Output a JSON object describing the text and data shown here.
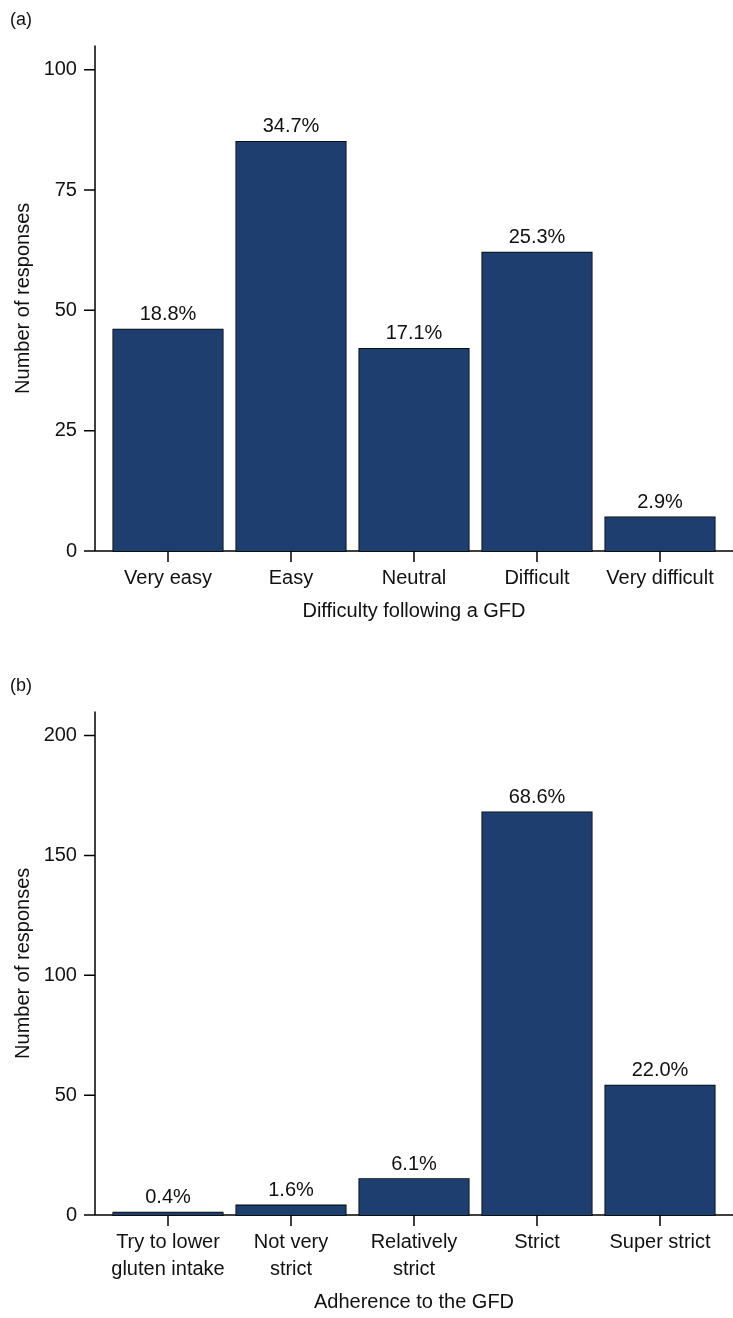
{
  "chart_data": [
    {
      "type": "bar",
      "title": "(a)",
      "xlabel": "Difficulty following a GFD",
      "ylabel": "Number of responses",
      "categories": [
        "Very easy",
        "Easy",
        "Neutral",
        "Difficult",
        "Very difficult"
      ],
      "values": [
        46,
        85,
        42,
        62,
        7
      ],
      "color": "#1d3e6f",
      "ylim": [
        0,
        105
      ],
      "yticks": [
        0,
        25,
        50,
        75,
        100
      ],
      "annotations": [
        {
          "text": "18.8%",
          "x": "Very easy",
          "y": 46
        },
        {
          "text": "34.7%",
          "x": "Easy",
          "y": 85
        },
        {
          "text": "17.1%",
          "x": "Neutral",
          "y": 42
        },
        {
          "text": "25.3%",
          "x": "Difficult",
          "y": 62
        },
        {
          "text": "2.9%",
          "x": "Very difficult",
          "y": 7
        }
      ]
    },
    {
      "type": "bar",
      "title": "(b)",
      "xlabel": "Adherence to the GFD",
      "ylabel": "Number of responses",
      "categories": [
        "Try to lower gluten intake",
        "Not very strict",
        "Relatively strict",
        "Strict",
        "Super strict"
      ],
      "values": [
        1,
        4,
        15,
        168,
        54
      ],
      "color": "#1d3e6f",
      "ylim": [
        0,
        210
      ],
      "yticks": [
        0,
        50,
        100,
        150,
        200
      ],
      "annotations": [
        {
          "text": "0.4%",
          "x": "Try to lower gluten intake",
          "y": 1
        },
        {
          "text": "1.6%",
          "x": "Not very strict",
          "y": 4
        },
        {
          "text": "6.1%",
          "x": "Relatively strict",
          "y": 15
        },
        {
          "text": "68.6%",
          "x": "Strict",
          "y": 168
        },
        {
          "text": "22.0%",
          "x": "Super strict",
          "y": 54
        }
      ]
    }
  ]
}
